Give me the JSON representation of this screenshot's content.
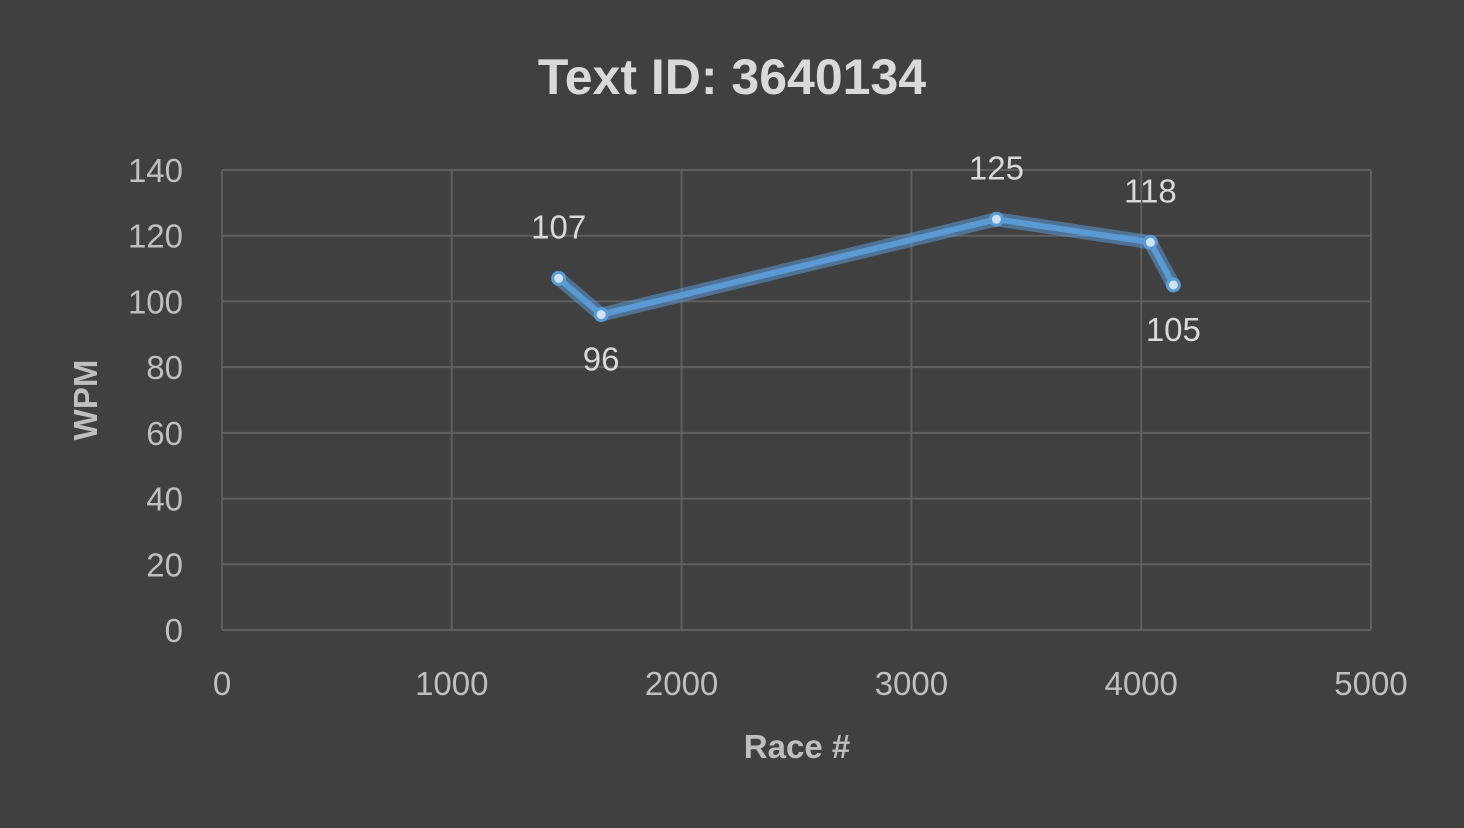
{
  "chart_data": {
    "type": "scatter",
    "title": "Text ID: 3640134",
    "xlabel": "Race #",
    "ylabel": "WPM",
    "xlim": [
      0,
      5000
    ],
    "ylim": [
      0,
      140
    ],
    "x_ticks": [
      "0",
      "1000",
      "2000",
      "3000",
      "4000",
      "5000"
    ],
    "y_ticks": [
      "0",
      "20",
      "40",
      "60",
      "80",
      "100",
      "120",
      "140"
    ],
    "grid": true,
    "legend": "none",
    "series": [
      {
        "color": "#5b9bd5",
        "points": [
          {
            "x": 1465,
            "y": 107,
            "label": "107"
          },
          {
            "x": 1650,
            "y": 96,
            "label": "96"
          },
          {
            "x": 3370,
            "y": 125,
            "label": "125"
          },
          {
            "x": 4040,
            "y": 118,
            "label": "118"
          },
          {
            "x": 4140,
            "y": 105,
            "label": "105"
          }
        ]
      }
    ]
  }
}
